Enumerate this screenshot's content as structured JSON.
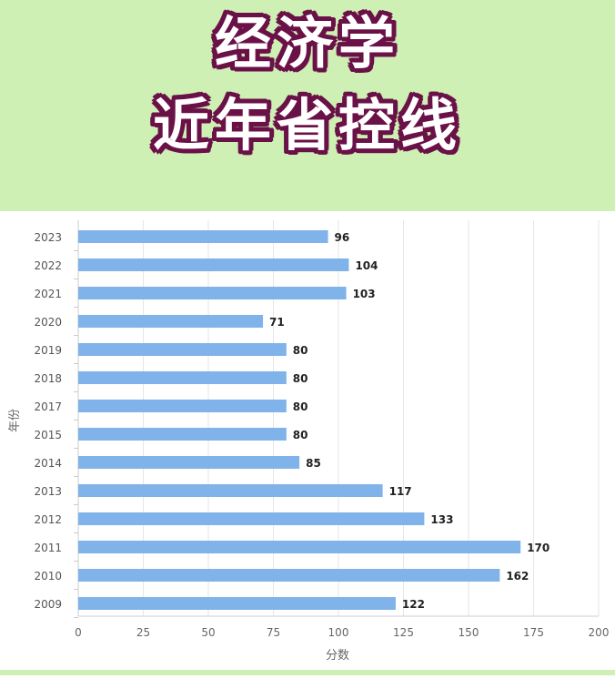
{
  "banner": {
    "title_line1": "经济学",
    "title_line2": "近年省控线",
    "background": "#cef0b4",
    "text_outline_color": "#6a1147"
  },
  "chart_data": {
    "type": "bar",
    "orientation": "horizontal",
    "categories": [
      "2023",
      "2022",
      "2021",
      "2020",
      "2019",
      "2018",
      "2017",
      "2015",
      "2014",
      "2013",
      "2012",
      "2011",
      "2010",
      "2009"
    ],
    "values": [
      96,
      104,
      103,
      71,
      80,
      80,
      80,
      80,
      85,
      117,
      133,
      170,
      162,
      122
    ],
    "xlabel": "分数",
    "ylabel": "年份",
    "xlim": [
      0,
      200
    ],
    "xticks": [
      0,
      25,
      50,
      75,
      100,
      125,
      150,
      175,
      200
    ],
    "grid": true,
    "bar_color": "#7fb3ea"
  }
}
